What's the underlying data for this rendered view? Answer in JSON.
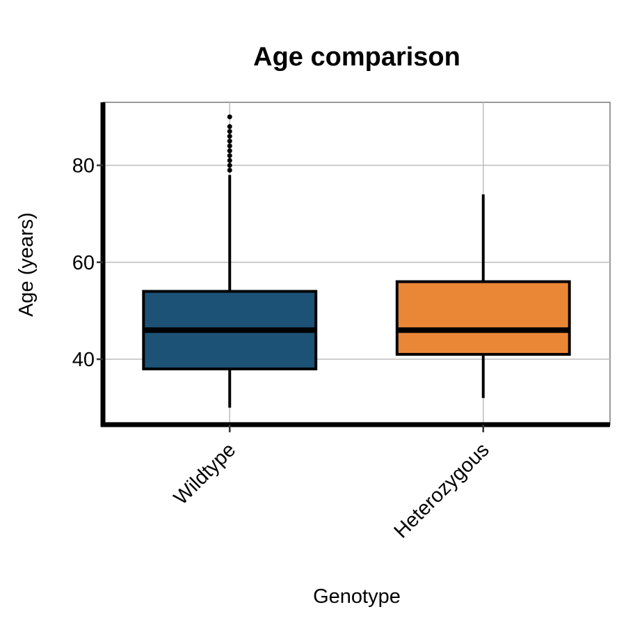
{
  "chart_data": {
    "type": "boxplot",
    "title": "Age comparison",
    "xlabel": "Genotype",
    "ylabel": "Age (years)",
    "ylim": [
      26.5,
      93
    ],
    "yticks": [
      40,
      60,
      80
    ],
    "grid": true,
    "legend": "none",
    "categories": [
      "Wildtype",
      "Heterozygous"
    ],
    "boxes": [
      {
        "category": "Wildtype",
        "min": 30,
        "q1": 38,
        "median": 46,
        "q3": 54,
        "max": 78,
        "outliers": [
          79,
          80,
          81,
          82,
          83,
          84,
          85,
          86,
          87,
          88,
          90
        ],
        "color": "#1c5276"
      },
      {
        "category": "Heterozygous",
        "min": 32,
        "q1": 41,
        "median": 46,
        "q3": 56,
        "max": 74,
        "outliers": [],
        "color": "#ea8737"
      }
    ]
  }
}
